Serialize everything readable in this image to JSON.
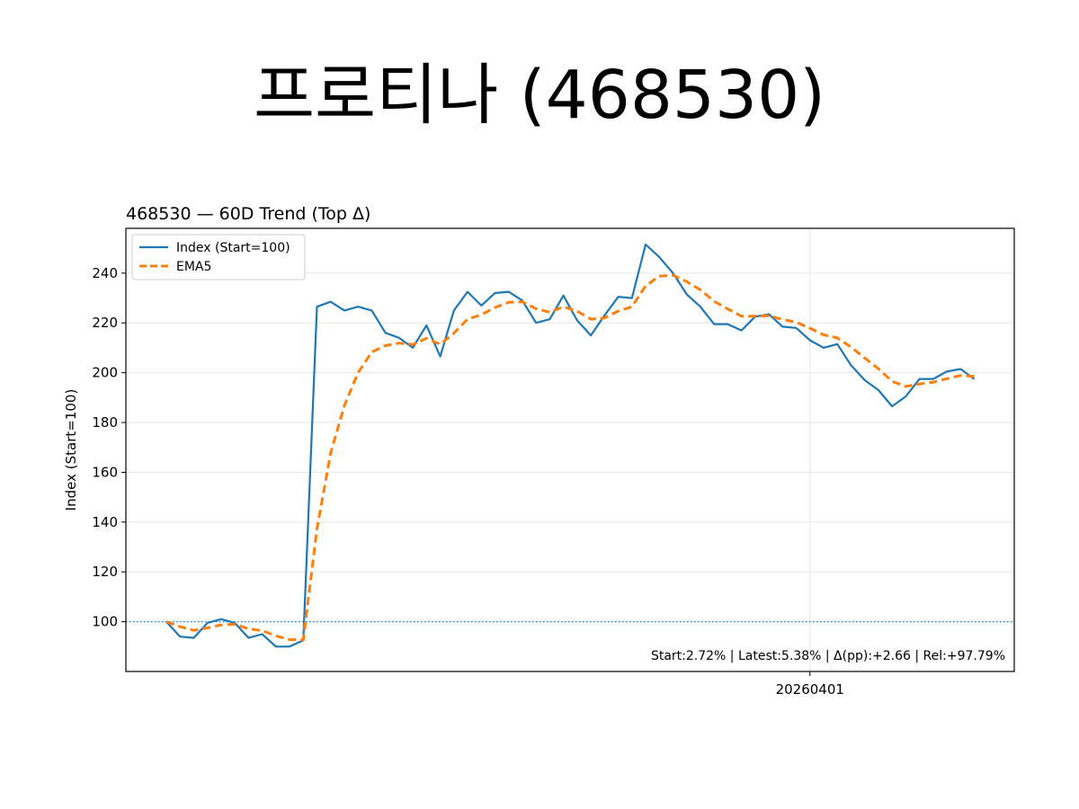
{
  "page": {
    "title": "프로티나 (468530)"
  },
  "chart_data": {
    "type": "line",
    "title": "468530 — 60D Trend (Top Δ)",
    "xlabel": "",
    "ylabel": "Index (Start=100)",
    "ylim": [
      80,
      258
    ],
    "yticks": [
      100,
      120,
      140,
      160,
      180,
      200,
      220,
      240
    ],
    "xticks": [
      {
        "index": 47,
        "label": "20260401"
      }
    ],
    "grid": true,
    "legend_position": "top-left",
    "baseline": 100,
    "annotation": "Start:2.72% | Latest:5.38% | Δ(pp):+2.66 | Rel:+97.79%",
    "series": [
      {
        "name": "Index (Start=100)",
        "color": "#1f77b4",
        "style": "solid",
        "values": [
          100,
          94,
          93.5,
          99.5,
          101,
          99.5,
          93.5,
          95,
          90,
          90,
          92.5,
          226.5,
          228.5,
          225,
          226.5,
          225,
          216,
          214,
          210,
          219,
          206.5,
          225,
          232.5,
          227,
          232,
          232.5,
          229,
          220,
          221.5,
          231,
          221,
          215,
          223,
          230.5,
          230,
          251.5,
          246.5,
          240,
          231.5,
          226.5,
          219.5,
          219.5,
          217,
          222.5,
          223.5,
          218.5,
          218,
          213,
          210,
          211.5,
          203,
          197,
          193,
          186.5,
          190.5,
          197.5,
          197.5,
          200.5,
          201.5,
          197.5
        ]
      },
      {
        "name": "EMA5",
        "color": "#ff7f0e",
        "style": "dashed",
        "values": [
          100,
          98,
          96.5,
          97.5,
          98.7,
          99,
          97.1,
          96.4,
          94.3,
          92.8,
          92.7,
          137.3,
          167.7,
          186.8,
          200,
          208.3,
          210.9,
          211.9,
          211.3,
          213.8,
          211.4,
          215.9,
          221.5,
          223.3,
          226.2,
          228.3,
          228.5,
          225.7,
          224.3,
          226.5,
          224.7,
          221.5,
          222,
          224.8,
          226.5,
          234.9,
          238.8,
          239.2,
          236.6,
          233.3,
          228.7,
          225.6,
          222.7,
          222.7,
          222.9,
          221.4,
          220.3,
          217.9,
          215.2,
          214,
          210.3,
          205.9,
          201.6,
          196.5,
          194.5,
          195.5,
          196.2,
          197.6,
          198.9,
          198.5
        ]
      }
    ]
  }
}
